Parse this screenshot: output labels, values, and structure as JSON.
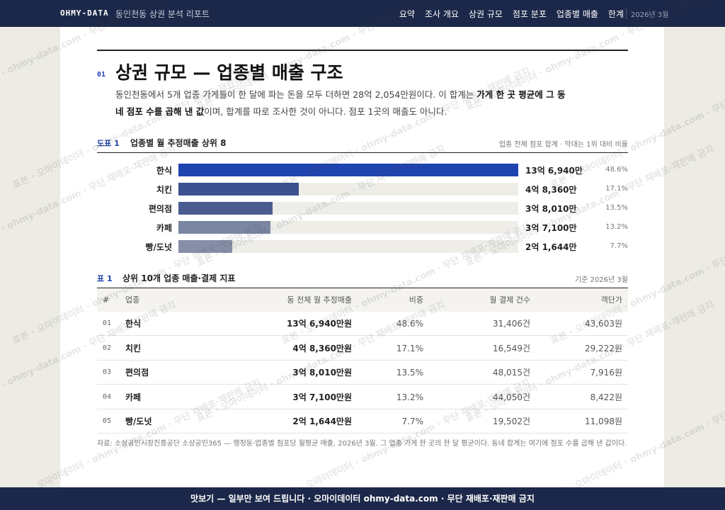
{
  "nav": {
    "logo": "OHMY-DATA",
    "subtitle": "동인천동 상권 분석 리포트",
    "items": [
      "요약",
      "조사 개요",
      "상권 규모",
      "점포 분포",
      "업종별 매출",
      "한계"
    ],
    "date": "2026년 3월"
  },
  "section": {
    "number": "01",
    "title": "상권 규모 — 업종별 매출 구조",
    "lead": [
      "동인천동에서 5개 업종 가게들이 한 달에 파는 돈을 모두 더하면 28억 2,054만원이다. 이 합계는 ",
      "가게 한 곳 평균에 그 동네 점포 수를 곱해 낸 값",
      "이며, 합계를 따로 조사한 것이 아니다. 점포 1곳의 매출도 아니다."
    ]
  },
  "figure": {
    "label": "도표 1",
    "title": "업종별 월 추정매출 상위 8",
    "note": "업종 전체 점포 합계 · 막대는 1위 대비 비율",
    "categories": [
      "한식",
      "치킨",
      "편의점",
      "카페",
      "빵/도넛"
    ],
    "values": [
      136940,
      48360,
      38010,
      37100,
      21644
    ],
    "value_labels": [
      "13억 6,940만",
      "4억 8,360만",
      "3억 8,010만",
      "3억 7,100만",
      "2억 1,644만"
    ],
    "shares": [
      "48.6%",
      "17.1%",
      "13.5%",
      "13.2%",
      "7.7%"
    ],
    "colors": [
      "#1f44b0",
      "#3c5190",
      "#4a5b8f",
      "#7b86a3",
      "#878fa8"
    ]
  },
  "table": {
    "label": "표 1",
    "title": "상위 10개 업종 매출·결제 지표",
    "note": "기준 2026년 3월",
    "header": [
      "#",
      "업종",
      "동 전체 월 추정매출",
      "비중",
      "월 결제 건수",
      "객단가"
    ],
    "rows": [
      [
        "01",
        "한식",
        "13억 6,940만원",
        "48.6%",
        "31,406건",
        "43,603원"
      ],
      [
        "02",
        "치킨",
        "4억 8,360만원",
        "17.1%",
        "16,549건",
        "29,222원"
      ],
      [
        "03",
        "편의점",
        "3억 8,010만원",
        "13.5%",
        "48,015건",
        "7,916원"
      ],
      [
        "04",
        "카페",
        "3억 7,100만원",
        "13.2%",
        "44,050건",
        "8,422원"
      ],
      [
        "05",
        "빵/도넛",
        "2억 1,644만원",
        "7.7%",
        "19,502건",
        "11,098원"
      ]
    ]
  },
  "source": "자료: 소상공인시장진흥공단 소상공인365 — 행정동·업종별 점포당 월평균 매출, 2026년 3월. 그 업종 가게 한 곳의 한 달 평균이다. 동네 합계는 여기에 점포 수를 곱해 낸 값이다.",
  "watermark": "표본 · 오마이데이터 · ohmy-data.com · 무단 재배포·재판매 금지",
  "footer": "맛보기 — 일부만 보여 드립니다 · 오마이데이터 ohmy-data.com · 무단 재배포·재판매 금지"
}
